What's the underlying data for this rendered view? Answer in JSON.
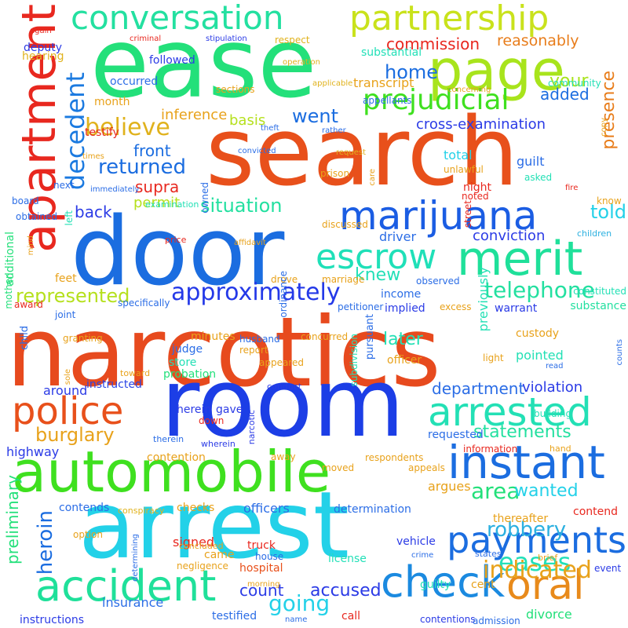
{
  "words": [
    {
      "text": "narcotics",
      "color": "#e74a1e"
    },
    {
      "text": "search",
      "color": "#e8501b"
    },
    {
      "text": "door",
      "color": "#1b6de0"
    },
    {
      "text": "room",
      "color": "#1c3ee6"
    },
    {
      "text": "arrest",
      "color": "#23d1e8"
    },
    {
      "text": "ease",
      "color": "#23e07a"
    },
    {
      "text": "apartment",
      "color": "#e8281f"
    },
    {
      "text": "automobile",
      "color": "#3fe01f"
    },
    {
      "text": "page",
      "color": "#a8e41c"
    },
    {
      "text": "merit",
      "color": "#1fe09a"
    },
    {
      "text": "conversation",
      "color": "#23e0a0"
    },
    {
      "text": "partnership",
      "color": "#c9e21c"
    },
    {
      "text": "marijuana",
      "color": "#1b5de3"
    },
    {
      "text": "escrow",
      "color": "#1fe0b8"
    },
    {
      "text": "instant",
      "color": "#1b6de0"
    },
    {
      "text": "arrested",
      "color": "#23e0b5"
    },
    {
      "text": "police",
      "color": "#e8501b"
    },
    {
      "text": "check",
      "color": "#1b8ae0"
    },
    {
      "text": "accident",
      "color": "#1fe09a"
    },
    {
      "text": "oral",
      "color": "#e88a1b"
    },
    {
      "text": "payments",
      "color": "#1b6de0"
    },
    {
      "text": "prejudicial",
      "color": "#3fe01f"
    },
    {
      "text": "approximately",
      "color": "#2439e8"
    },
    {
      "text": "believe",
      "color": "#e0b21c"
    },
    {
      "text": "decedent",
      "color": "#1b7ae0"
    },
    {
      "text": "returned",
      "color": "#1b6de0"
    },
    {
      "text": "telephone",
      "color": "#23e0a0"
    },
    {
      "text": "represented",
      "color": "#b5e01c"
    },
    {
      "text": "burglary",
      "color": "#e8a21b"
    },
    {
      "text": "instructed",
      "color": "#2b45e6"
    },
    {
      "text": "heroin",
      "color": "#1b6de0"
    },
    {
      "text": "eases",
      "color": "#23e0b8"
    },
    {
      "text": "indicated",
      "color": "#e8a21b"
    },
    {
      "text": "area",
      "color": "#23e07a"
    },
    {
      "text": "robbery",
      "color": "#2bb0e0"
    },
    {
      "text": "going",
      "color": "#23d1e8"
    },
    {
      "text": "situation",
      "color": "#23e0a0"
    },
    {
      "text": "home",
      "color": "#1b6de0"
    },
    {
      "text": "went",
      "color": "#1b6de0"
    },
    {
      "text": "told",
      "color": "#23d1e8"
    },
    {
      "text": "your",
      "color": "#a8e41c"
    },
    {
      "text": "presence",
      "color": "#e87d1b"
    },
    {
      "text": "knew",
      "color": "#23e0b8"
    },
    {
      "text": "later",
      "color": "#23e0b5"
    },
    {
      "text": "department",
      "color": "#2b6de6"
    },
    {
      "text": "statements",
      "color": "#23e0a0"
    },
    {
      "text": "wanted",
      "color": "#23d1e8"
    },
    {
      "text": "accused",
      "color": "#2b3be6"
    },
    {
      "text": "count",
      "color": "#2b3be6"
    },
    {
      "text": "commission",
      "color": "#e8281f"
    },
    {
      "text": "reasonably",
      "color": "#e87d1b"
    },
    {
      "text": "added",
      "color": "#1b6de0"
    },
    {
      "text": "basis",
      "color": "#b5e01c"
    },
    {
      "text": "front",
      "color": "#1b6de0"
    },
    {
      "text": "supra",
      "color": "#e8281f"
    },
    {
      "text": "back",
      "color": "#2b3be6"
    },
    {
      "text": "permit",
      "color": "#b5e01c"
    },
    {
      "text": "inference",
      "color": "#e8a21b"
    },
    {
      "text": "cross-examination",
      "color": "#2b3be6"
    },
    {
      "text": "transcript",
      "color": "#e8a21b"
    },
    {
      "text": "substantial",
      "color": "#23e0b8"
    },
    {
      "text": "deputy",
      "color": "#2b3be6"
    },
    {
      "text": "hearing",
      "color": "#e0b21c"
    },
    {
      "text": "followed",
      "color": "#2b3be6"
    },
    {
      "text": "occurred",
      "color": "#2b6de6"
    },
    {
      "text": "month",
      "color": "#e8a21b"
    },
    {
      "text": "testify",
      "color": "#e8281f"
    },
    {
      "text": "total",
      "color": "#23d1e8"
    },
    {
      "text": "guilt",
      "color": "#2b6de6"
    },
    {
      "text": "night",
      "color": "#e8281f"
    },
    {
      "text": "conviction",
      "color": "#2b3be6"
    },
    {
      "text": "driver",
      "color": "#2b6de6"
    },
    {
      "text": "income",
      "color": "#2b6de6"
    },
    {
      "text": "implied",
      "color": "#2b3be6"
    },
    {
      "text": "warrant",
      "color": "#2b3be6"
    },
    {
      "text": "substance",
      "color": "#23e0a0"
    },
    {
      "text": "custody",
      "color": "#e8a21b"
    },
    {
      "text": "pointed",
      "color": "#23e0b5"
    },
    {
      "text": "officer",
      "color": "#e8a21b"
    },
    {
      "text": "violation",
      "color": "#2b3be6"
    },
    {
      "text": "probation",
      "color": "#23e07a"
    },
    {
      "text": "store",
      "color": "#23e0b5"
    },
    {
      "text": "judge",
      "color": "#2b6de6"
    },
    {
      "text": "minutes",
      "color": "#e8a21b"
    },
    {
      "text": "around",
      "color": "#2b3be6"
    },
    {
      "text": "highway",
      "color": "#2b3be6"
    },
    {
      "text": "herein",
      "color": "#2b3be6"
    },
    {
      "text": "gave",
      "color": "#2b3be6"
    },
    {
      "text": "contention",
      "color": "#e8a21b"
    },
    {
      "text": "respondents",
      "color": "#e8a21b"
    },
    {
      "text": "requested",
      "color": "#2b6de6"
    },
    {
      "text": "information",
      "color": "#e8281f"
    },
    {
      "text": "argues",
      "color": "#e8a21b"
    },
    {
      "text": "contends",
      "color": "#2b6de6"
    },
    {
      "text": "checks",
      "color": "#e8a21b"
    },
    {
      "text": "officers",
      "color": "#2b6de6"
    },
    {
      "text": "determination",
      "color": "#2b6de6"
    },
    {
      "text": "contend",
      "color": "#e8281f"
    },
    {
      "text": "preliminary",
      "color": "#23e07a"
    },
    {
      "text": "signed",
      "color": "#e8281f"
    },
    {
      "text": "came",
      "color": "#e8a21b"
    },
    {
      "text": "truck",
      "color": "#e8281f"
    },
    {
      "text": "hospital",
      "color": "#e8501b"
    },
    {
      "text": "license",
      "color": "#23e0b8"
    },
    {
      "text": "vehicle",
      "color": "#2b3be6"
    },
    {
      "text": "guilty",
      "color": "#23e0b8"
    },
    {
      "text": "cent",
      "color": "#e8a21b"
    },
    {
      "text": "event",
      "color": "#2b3be6"
    },
    {
      "text": "insurance",
      "color": "#2b6de6"
    },
    {
      "text": "testified",
      "color": "#2b6de6"
    },
    {
      "text": "divorce",
      "color": "#23e07a"
    },
    {
      "text": "instructions",
      "color": "#2b3be6"
    },
    {
      "text": "call",
      "color": "#e8281f"
    },
    {
      "text": "contentions",
      "color": "#2b3be6"
    },
    {
      "text": "previously",
      "color": "#23e0b5"
    },
    {
      "text": "light",
      "color": "#e8a21b"
    },
    {
      "text": "report",
      "color": "#e8a21b"
    },
    {
      "text": "husband",
      "color": "#2b6de6"
    },
    {
      "text": "pursuant",
      "color": "#2b6de6"
    },
    {
      "text": "feet",
      "color": "#e8a21b"
    },
    {
      "text": "mother",
      "color": "#23e07a"
    },
    {
      "text": "additional",
      "color": "#23e07a"
    },
    {
      "text": "child",
      "color": "#2b6de6"
    },
    {
      "text": "granting",
      "color": "#e8a21b"
    },
    {
      "text": "sections",
      "color": "#e8a21b"
    },
    {
      "text": "again",
      "color": "#e8281f"
    },
    {
      "text": "next",
      "color": "#2b6de6"
    },
    {
      "text": "board",
      "color": "#2b6de6"
    },
    {
      "text": "obtained",
      "color": "#2b6de6"
    },
    {
      "text": "left",
      "color": "#23e0b5"
    },
    {
      "text": "appellants",
      "color": "#2b6de6"
    },
    {
      "text": "community",
      "color": "#23e0b5"
    },
    {
      "text": "building",
      "color": "#23e0b5"
    },
    {
      "text": "children",
      "color": "#2bb0e0"
    },
    {
      "text": "know",
      "color": "#e8a21b"
    },
    {
      "text": "constituted",
      "color": "#23e0b5"
    },
    {
      "text": "observed",
      "color": "#2b6de6"
    },
    {
      "text": "drove",
      "color": "#e8a21b"
    },
    {
      "text": "marriage",
      "color": "#e8a21b"
    },
    {
      "text": "petitioner",
      "color": "#2b6de6"
    },
    {
      "text": "specifically",
      "color": "#2b6de6"
    },
    {
      "text": "joint",
      "color": "#2b6de6"
    },
    {
      "text": "award",
      "color": "#e8281f"
    },
    {
      "text": "concurred",
      "color": "#e8a21b"
    },
    {
      "text": "appeared",
      "color": "#e8a21b"
    },
    {
      "text": "conduct",
      "color": "#2b3be6"
    },
    {
      "text": "toward",
      "color": "#e8a21b"
    },
    {
      "text": "wherein",
      "color": "#2b3be6"
    },
    {
      "text": "therein",
      "color": "#2b6de6"
    },
    {
      "text": "hand",
      "color": "#e8a21b"
    },
    {
      "text": "away",
      "color": "#e8a21b"
    },
    {
      "text": "narcotic",
      "color": "#2b3be6"
    },
    {
      "text": "down",
      "color": "#e8281f"
    },
    {
      "text": "price",
      "color": "#e8281f"
    },
    {
      "text": "respect",
      "color": "#e0b21c"
    },
    {
      "text": "stipulation",
      "color": "#2b3be6"
    },
    {
      "text": "criminal",
      "color": "#e8281f"
    },
    {
      "text": "operation",
      "color": "#e0b21c"
    },
    {
      "text": "applicable",
      "color": "#e0b21c"
    },
    {
      "text": "concerning",
      "color": "#e8a21b"
    },
    {
      "text": "copy",
      "color": "#e8a21b"
    },
    {
      "text": "theft",
      "color": "#2b6de6"
    },
    {
      "text": "rather",
      "color": "#2b6de6"
    },
    {
      "text": "times",
      "color": "#e8a21b"
    },
    {
      "text": "convicted",
      "color": "#2b6de6"
    },
    {
      "text": "care",
      "color": "#e8a21b"
    },
    {
      "text": "prison",
      "color": "#e8a21b"
    },
    {
      "text": "unlawful",
      "color": "#e8a21b"
    },
    {
      "text": "asked",
      "color": "#23e0b5"
    },
    {
      "text": "request",
      "color": "#e0b21c"
    },
    {
      "text": "immediately",
      "color": "#2b6de6"
    },
    {
      "text": "examination",
      "color": "#23e0b5"
    },
    {
      "text": "mind",
      "color": "#e8a21b"
    },
    {
      "text": "owned",
      "color": "#2b6de6"
    },
    {
      "text": "fire",
      "color": "#e8281f"
    },
    {
      "text": "noted",
      "color": "#e8281f"
    },
    {
      "text": "discussed",
      "color": "#e8a21b"
    },
    {
      "text": "street",
      "color": "#e8281f"
    },
    {
      "text": "affidavit",
      "color": "#e8a21b"
    },
    {
      "text": "ordinance",
      "color": "#2b6de6"
    },
    {
      "text": "excess",
      "color": "#e8a21b"
    },
    {
      "text": "subdivision",
      "color": "#23e0b5"
    },
    {
      "text": "sole",
      "color": "#e8a21b"
    },
    {
      "text": "counts",
      "color": "#2b6de6"
    },
    {
      "text": "read",
      "color": "#2b6de6"
    },
    {
      "text": "appeals",
      "color": "#e8a21b"
    },
    {
      "text": "moved",
      "color": "#e8a21b"
    },
    {
      "text": "option",
      "color": "#e8a21b"
    },
    {
      "text": "conspiracy",
      "color": "#e0b21c"
    },
    {
      "text": "thereafter",
      "color": "#e8a21b"
    },
    {
      "text": "determining",
      "color": "#2b6de6"
    },
    {
      "text": "concluded",
      "color": "#e8a21b"
    },
    {
      "text": "negligence",
      "color": "#e8a21b"
    },
    {
      "text": "house",
      "color": "#2b6de6"
    },
    {
      "text": "morning",
      "color": "#e8a21b"
    },
    {
      "text": "name",
      "color": "#2b6de6"
    },
    {
      "text": "admission",
      "color": "#2b6de6"
    },
    {
      "text": "crime",
      "color": "#2b6de6"
    },
    {
      "text": "states",
      "color": "#2b6de6"
    },
    {
      "text": "brief",
      "color": "#e8a21b"
    }
  ]
}
